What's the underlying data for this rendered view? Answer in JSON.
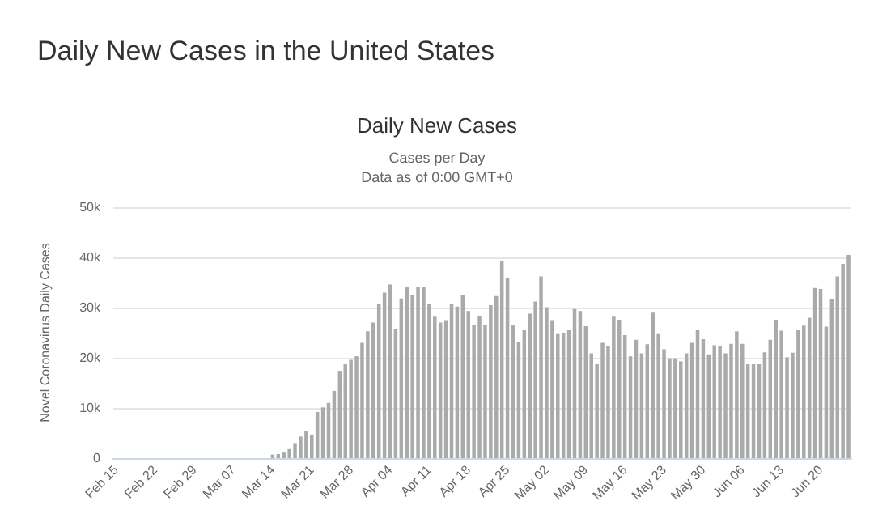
{
  "chart_data": {
    "type": "bar",
    "title": "Daily New Cases in the United States",
    "subtitle": "Daily New Cases",
    "annotations": [
      "Cases per Day",
      "Data as of 0:00 GMT+0"
    ],
    "ylabel": "Novel Coronavirus Daily Cases",
    "categories": [
      "Feb 15",
      null,
      null,
      null,
      null,
      null,
      null,
      "Feb 22",
      null,
      null,
      null,
      null,
      null,
      null,
      "Feb 29",
      null,
      null,
      null,
      null,
      null,
      null,
      "Mar 07",
      null,
      null,
      null,
      null,
      null,
      null,
      "Mar 14",
      null,
      null,
      null,
      null,
      null,
      null,
      "Mar 21",
      null,
      null,
      null,
      null,
      null,
      null,
      "Mar 28",
      null,
      null,
      null,
      null,
      null,
      null,
      "Apr 04",
      null,
      null,
      null,
      null,
      null,
      null,
      "Apr 11",
      null,
      null,
      null,
      null,
      null,
      null,
      "Apr 18",
      null,
      null,
      null,
      null,
      null,
      null,
      "Apr 25",
      null,
      null,
      null,
      null,
      null,
      null,
      "May 02",
      null,
      null,
      null,
      null,
      null,
      null,
      "May 09",
      null,
      null,
      null,
      null,
      null,
      null,
      "May 16",
      null,
      null,
      null,
      null,
      null,
      null,
      "May 23",
      null,
      null,
      null,
      null,
      null,
      null,
      "May 30",
      null,
      null,
      null,
      null,
      null,
      null,
      "Jun 06",
      null,
      null,
      null,
      null,
      null,
      null,
      "Jun 13",
      null,
      null,
      null,
      null,
      null,
      null,
      "Jun 20",
      null,
      null,
      null,
      null,
      null
    ],
    "values": [
      0,
      0,
      0,
      0,
      0,
      0,
      0,
      0,
      0,
      0,
      0,
      0,
      0,
      0,
      0,
      0,
      0,
      0,
      0,
      0,
      0,
      null,
      null,
      null,
      null,
      null,
      null,
      null,
      700,
      800,
      1100,
      1800,
      3000,
      4300,
      5400,
      4700,
      9200,
      10100,
      11000,
      13400,
      17400,
      18700,
      19600,
      20300,
      23000,
      25300,
      27000,
      30700,
      33000,
      34600,
      25800,
      31800,
      34200,
      32600,
      34200,
      34200,
      30700,
      28200,
      27000,
      27500,
      30800,
      30200,
      32600,
      29300,
      26500,
      28400,
      26500,
      30500,
      32300,
      39300,
      35900,
      26600,
      23200,
      25500,
      28800,
      31200,
      36200,
      30100,
      27500,
      24700,
      25000,
      25500,
      29700,
      29300,
      26300,
      20900,
      18700,
      23000,
      22300,
      28200,
      27600,
      24500,
      20300,
      23600,
      20900,
      22700,
      29000,
      24700,
      21700,
      19900,
      19900,
      19300,
      20900,
      23000,
      25500,
      23700,
      20700,
      22500,
      22300,
      20900,
      22800,
      25300,
      22800,
      18700,
      18700,
      18700,
      21100,
      23600,
      27600,
      25400,
      20100,
      21000,
      25500,
      26400,
      28000,
      33900,
      33700,
      26200,
      31700,
      36200,
      38700,
      40500
    ],
    "color": "#aaaaaa",
    "ylim": [
      0,
      50000
    ],
    "yticks": [
      {
        "value": 0,
        "label": "0"
      },
      {
        "value": 10000,
        "label": "10k"
      },
      {
        "value": 20000,
        "label": "20k"
      },
      {
        "value": 30000,
        "label": "30k"
      },
      {
        "value": 40000,
        "label": "40k"
      },
      {
        "value": 50000,
        "label": "50k"
      }
    ],
    "grid": "y"
  }
}
